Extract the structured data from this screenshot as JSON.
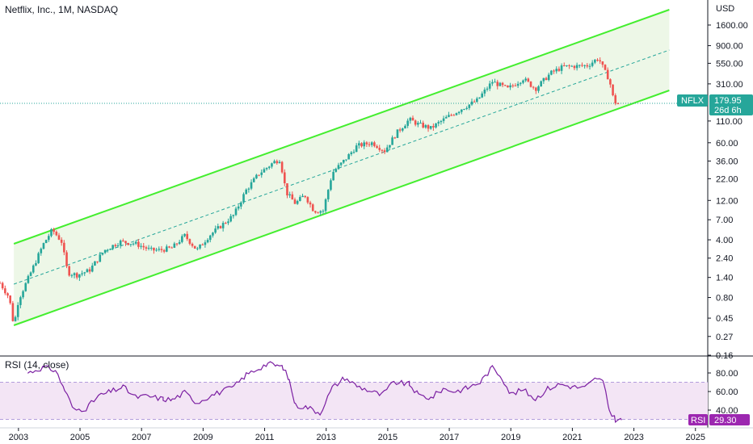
{
  "header": {
    "title": "Netflix, Inc., 1M, NASDAQ",
    "currency": "USD"
  },
  "price_label": {
    "symbol": "NFLX",
    "price": "179.95",
    "countdown": "26d 6h"
  },
  "rsi_panel": {
    "title": "RSI (14, close)",
    "badge_label": "RSI",
    "badge_value": "29.30"
  },
  "colors": {
    "up": "#26a69a",
    "down": "#ef5350",
    "channel": "#44ee2f",
    "channel_fill": "#e8f5e1",
    "rsi_line": "#7b1fa2",
    "rsi_band": "#f3e5f5",
    "rsi_badge": "#9c27b0",
    "price_badge": "#26a69a"
  },
  "chart_data": [
    {
      "type": "candlestick",
      "title": "Netflix, Inc., 1M, NASDAQ",
      "scale": "log",
      "y_ticks": [
        "1600.00",
        "900.00",
        "550.00",
        "310.00",
        "110.00",
        "60.00",
        "36.00",
        "22.00",
        "12.00",
        "7.00",
        "4.00",
        "2.40",
        "1.40",
        "0.80",
        "0.45",
        "0.27",
        "0.16"
      ],
      "x_ticks": [
        "2003",
        "2005",
        "2007",
        "2009",
        "2011",
        "2013",
        "2015",
        "2017",
        "2019",
        "2021",
        "2023",
        "2025"
      ],
      "x_range": [
        2002.4,
        2025.4
      ],
      "last_price": 179.95,
      "anchors": [
        [
          2002.4,
          1.2
        ],
        [
          2002.7,
          0.8
        ],
        [
          2002.85,
          0.36
        ],
        [
          2003.0,
          0.75
        ],
        [
          2003.4,
          1.6
        ],
        [
          2003.8,
          3.5
        ],
        [
          2004.1,
          5.3
        ],
        [
          2004.4,
          3.8
        ],
        [
          2004.6,
          1.6
        ],
        [
          2004.9,
          1.5
        ],
        [
          2005.3,
          1.7
        ],
        [
          2005.8,
          3.0
        ],
        [
          2006.3,
          3.8
        ],
        [
          2006.8,
          3.6
        ],
        [
          2007.3,
          3.0
        ],
        [
          2007.6,
          3.0
        ],
        [
          2008.0,
          3.2
        ],
        [
          2008.4,
          4.5
        ],
        [
          2008.8,
          3.0
        ],
        [
          2009.2,
          4.5
        ],
        [
          2009.6,
          6.0
        ],
        [
          2010.0,
          8.0
        ],
        [
          2010.4,
          16.0
        ],
        [
          2010.8,
          25.0
        ],
        [
          2011.3,
          35.0
        ],
        [
          2011.5,
          38.0
        ],
        [
          2011.7,
          15.0
        ],
        [
          2012.0,
          11.0
        ],
        [
          2012.3,
          14.0
        ],
        [
          2012.6,
          9.0
        ],
        [
          2012.9,
          9.0
        ],
        [
          2013.2,
          26.0
        ],
        [
          2013.6,
          37.0
        ],
        [
          2014.0,
          55.0
        ],
        [
          2014.5,
          60.0
        ],
        [
          2014.9,
          48.0
        ],
        [
          2015.3,
          80.0
        ],
        [
          2015.7,
          115.0
        ],
        [
          2016.0,
          100.0
        ],
        [
          2016.4,
          90.0
        ],
        [
          2016.9,
          120.0
        ],
        [
          2017.4,
          155.0
        ],
        [
          2017.9,
          195.0
        ],
        [
          2018.4,
          330.0
        ],
        [
          2018.9,
          270.0
        ],
        [
          2019.4,
          360.0
        ],
        [
          2019.8,
          270.0
        ],
        [
          2020.3,
          420.0
        ],
        [
          2020.7,
          500.0
        ],
        [
          2021.2,
          510.0
        ],
        [
          2021.5,
          520.0
        ],
        [
          2021.85,
          640.0
        ],
        [
          2022.05,
          440.0
        ],
        [
          2022.2,
          350.0
        ],
        [
          2022.35,
          190.0
        ],
        [
          2022.5,
          176.0
        ]
      ]
    },
    {
      "type": "line",
      "title": "RSI (14, close)",
      "y_ticks": [
        "80.00",
        "60.00",
        "40.00"
      ],
      "band": [
        30,
        70
      ],
      "last_value": 29.3,
      "anchors": [
        [
          2003.3,
          80
        ],
        [
          2003.8,
          86
        ],
        [
          2004.2,
          83
        ],
        [
          2004.5,
          62
        ],
        [
          2004.8,
          40
        ],
        [
          2005.2,
          42
        ],
        [
          2005.6,
          55
        ],
        [
          2006.0,
          60
        ],
        [
          2006.4,
          65
        ],
        [
          2006.8,
          54
        ],
        [
          2007.2,
          55
        ],
        [
          2007.7,
          52
        ],
        [
          2008.0,
          51
        ],
        [
          2008.4,
          59
        ],
        [
          2008.8,
          48
        ],
        [
          2009.2,
          55
        ],
        [
          2009.6,
          60
        ],
        [
          2010.0,
          65
        ],
        [
          2010.4,
          78
        ],
        [
          2010.8,
          85
        ],
        [
          2011.1,
          90
        ],
        [
          2011.4,
          88
        ],
        [
          2011.6,
          86
        ],
        [
          2011.8,
          72
        ],
        [
          2012.0,
          45
        ],
        [
          2012.4,
          43
        ],
        [
          2012.8,
          37
        ],
        [
          2013.2,
          64
        ],
        [
          2013.6,
          75
        ],
        [
          2014.0,
          66
        ],
        [
          2014.4,
          61
        ],
        [
          2014.8,
          56
        ],
        [
          2015.2,
          70
        ],
        [
          2015.7,
          68
        ],
        [
          2016.0,
          56
        ],
        [
          2016.4,
          53
        ],
        [
          2016.8,
          63
        ],
        [
          2017.2,
          60
        ],
        [
          2017.6,
          64
        ],
        [
          2018.0,
          70
        ],
        [
          2018.4,
          86
        ],
        [
          2018.7,
          76
        ],
        [
          2019.0,
          57
        ],
        [
          2019.4,
          62
        ],
        [
          2019.8,
          52
        ],
        [
          2020.2,
          63
        ],
        [
          2020.6,
          68
        ],
        [
          2021.0,
          65
        ],
        [
          2021.4,
          64
        ],
        [
          2021.8,
          75
        ],
        [
          2022.0,
          70
        ],
        [
          2022.2,
          40
        ],
        [
          2022.4,
          30
        ],
        [
          2022.6,
          29.3
        ]
      ]
    }
  ]
}
